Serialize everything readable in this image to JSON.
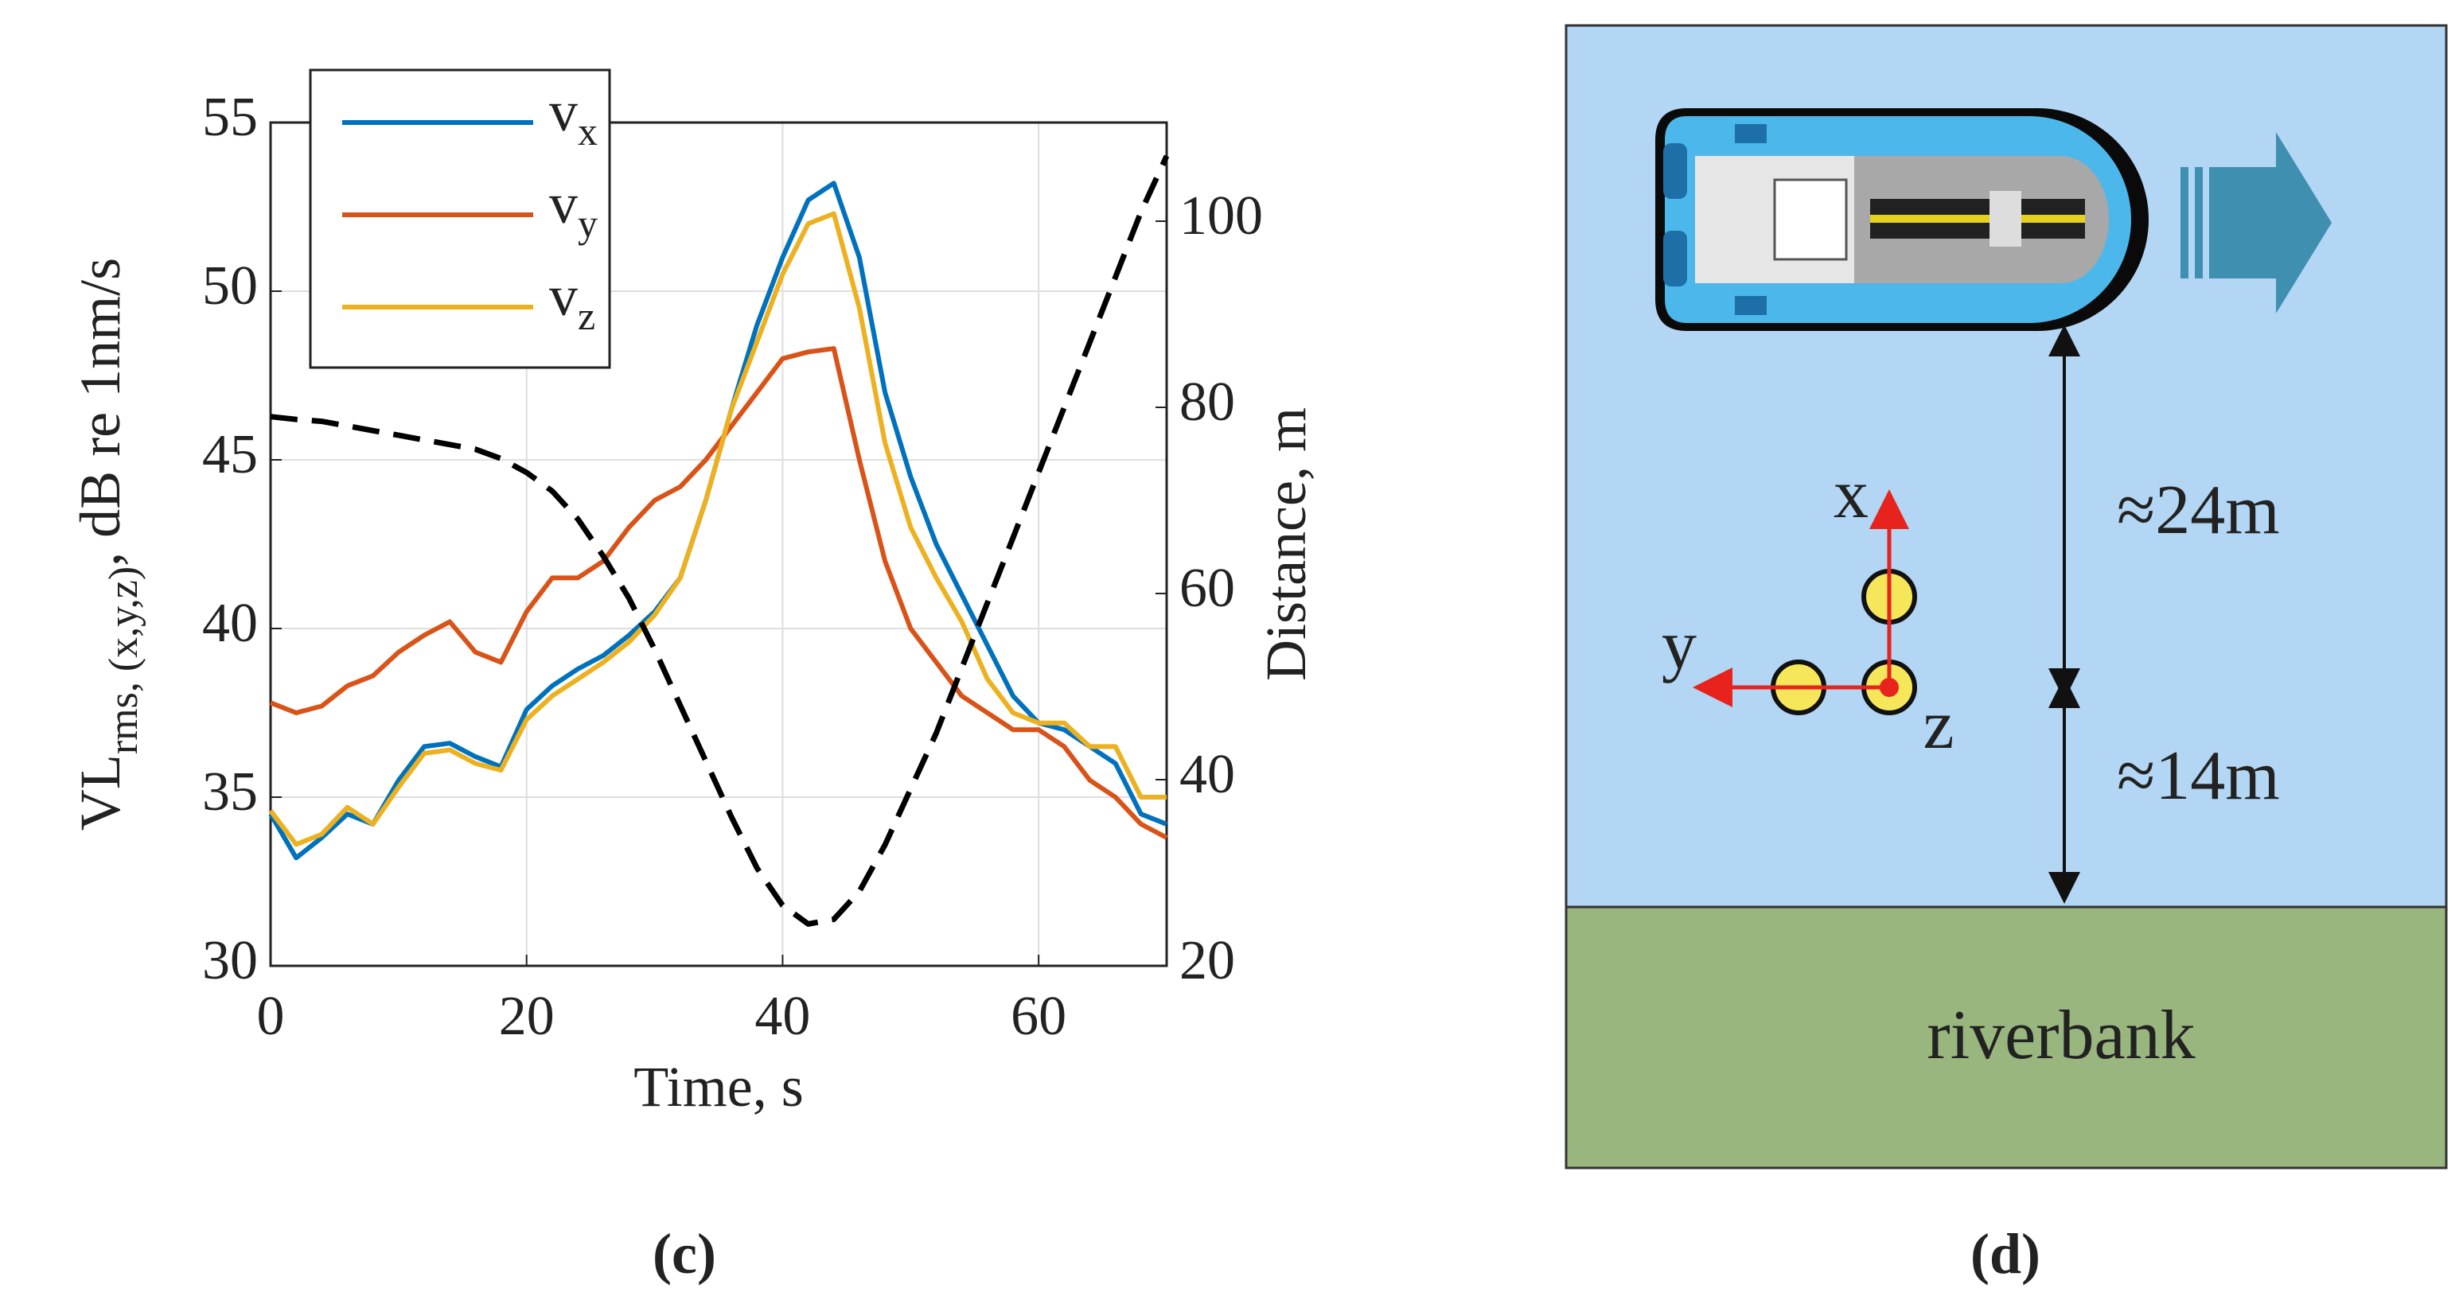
{
  "chart_data": {
    "type": "line",
    "x": [
      0,
      2,
      4,
      6,
      8,
      10,
      12,
      14,
      16,
      18,
      20,
      22,
      24,
      26,
      28,
      30,
      32,
      34,
      36,
      38,
      40,
      42,
      44,
      46,
      48,
      50,
      52,
      54,
      56,
      58,
      60,
      62,
      64,
      66,
      68,
      70
    ],
    "series": [
      {
        "name": "vx",
        "color": "#0072bd",
        "values": [
          34.5,
          33.2,
          33.8,
          34.5,
          34.2,
          35.5,
          36.5,
          36.6,
          36.2,
          35.9,
          37.6,
          38.3,
          38.8,
          39.2,
          39.8,
          40.5,
          41.5,
          43.8,
          46.5,
          49,
          51,
          52.7,
          53.2,
          51,
          47,
          44.5,
          42.5,
          41,
          39.5,
          38,
          37.2,
          37,
          36.5,
          36,
          34.5,
          34.2
        ]
      },
      {
        "name": "vy",
        "color": "#d95319",
        "values": [
          37.8,
          37.5,
          37.7,
          38.3,
          38.6,
          39.3,
          39.8,
          40.2,
          39.3,
          39,
          40.5,
          41.5,
          41.5,
          42,
          43,
          43.8,
          44.2,
          45,
          46,
          47,
          48,
          48.2,
          48.3,
          45,
          42,
          40,
          39,
          38,
          37.5,
          37,
          37,
          36.5,
          35.5,
          35,
          34.2,
          33.8
        ]
      },
      {
        "name": "vz",
        "color": "#edb120",
        "values": [
          34.6,
          33.6,
          33.9,
          34.7,
          34.2,
          35.3,
          36.3,
          36.4,
          36,
          35.8,
          37.3,
          38,
          38.5,
          39,
          39.6,
          40.4,
          41.5,
          43.8,
          46.5,
          48.5,
          50.5,
          52,
          52.3,
          49.5,
          45.5,
          43,
          41.5,
          40.2,
          38.5,
          37.5,
          37.2,
          37.2,
          36.5,
          36.5,
          35,
          35
        ]
      },
      {
        "axis": "y2",
        "color": "#000000",
        "linestyle": "dashed",
        "values": [
          79,
          78.7,
          78.5,
          78,
          77.5,
          77,
          76.5,
          76,
          75.5,
          74.5,
          73,
          71,
          68,
          64,
          59.5,
          54,
          48,
          42,
          36,
          30.5,
          26.5,
          24.5,
          25,
          28,
          33,
          39,
          45,
          52,
          59,
          66,
          73,
          80,
          87,
          94,
          101,
          107
        ]
      }
    ],
    "xlim": [
      0,
      70
    ],
    "xticks": [
      0,
      20,
      40,
      60
    ],
    "ylim": [
      30,
      55
    ],
    "yticks": [
      30,
      35,
      40,
      45,
      50,
      55
    ],
    "y2lim": [
      20,
      110.6
    ],
    "y2ticks": [
      20,
      40,
      60,
      80,
      100
    ],
    "xlabel": "Time, s",
    "ylabel": [
      "VL",
      "rms, (x,y,z)",
      ", dB re 1nm/s"
    ],
    "y2label": "Distance, m",
    "grid": true,
    "legend": "upper left"
  },
  "diagram": {
    "axes": {
      "x": "x",
      "y": "y",
      "z": "z"
    },
    "distances": [
      "≈24m",
      "≈14m"
    ],
    "bank": "riverbank"
  },
  "captions": [
    "(c)",
    "(d)"
  ]
}
